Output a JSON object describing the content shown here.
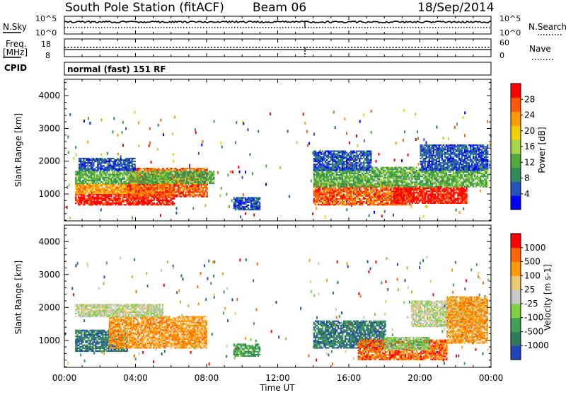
{
  "header": {
    "station": "South Pole Station (fitACF)",
    "beam": "Beam 06",
    "date": "18/Sep/2014"
  },
  "noise_panel": {
    "left_label": "N.Sky",
    "right_label": "N.Search",
    "left_ticks": [
      "10^5",
      "10^0"
    ],
    "right_ticks": [
      "10^5",
      "10^0"
    ]
  },
  "freq_panel": {
    "left_label_line1": "Freq.",
    "left_label_line2": "[MHz]",
    "right_label": "Nave",
    "left_ticks": [
      "18",
      "8"
    ],
    "right_ticks": [
      "60",
      "0"
    ]
  },
  "cpid_panel": {
    "label": "CPID",
    "mode": "normal (fast) 151 RF"
  },
  "x_axis": {
    "label": "Time UT",
    "tick_labels": [
      "00:00",
      "04:00",
      "08:00",
      "12:00",
      "16:00",
      "20:00",
      "00:00"
    ],
    "range_hours": [
      0,
      24
    ]
  },
  "chart_data": [
    {
      "type": "heatmap",
      "title": "",
      "quantity": "Power",
      "colorbar_label": "Power [dB]",
      "colorbar_ticks": [
        "28",
        "24",
        "20",
        "16",
        "12",
        "8",
        "4"
      ],
      "ylabel": "Slant Range [km]",
      "y_ticks": [
        "4000",
        "3000",
        "2000",
        "1000"
      ],
      "ylim": [
        180,
        4500
      ],
      "xlim": [
        0,
        24
      ],
      "colors": [
        "#0000ff",
        "#2255bb",
        "#2f8a5c",
        "#4faa3a",
        "#a8d64a",
        "#f0d000",
        "#ff9a00",
        "#ff5a00",
        "#ff0000"
      ],
      "bands": [
        {
          "t0": 0.6,
          "t1": 6.2,
          "r0": 650,
          "r1": 1000,
          "level": 8
        },
        {
          "t0": 0.6,
          "t1": 6.2,
          "r0": 1000,
          "r1": 1300,
          "level": 6
        },
        {
          "t0": 3.5,
          "t1": 8.0,
          "r0": 900,
          "r1": 1800,
          "level": 7
        },
        {
          "t0": 0.6,
          "t1": 8.4,
          "r0": 1300,
          "r1": 1700,
          "level": 3
        },
        {
          "t0": 0.8,
          "t1": 4.0,
          "r0": 1700,
          "r1": 2100,
          "level": 1
        },
        {
          "t0": 9.5,
          "t1": 11.0,
          "r0": 500,
          "r1": 900,
          "level": 1
        },
        {
          "t0": 14.0,
          "t1": 19.5,
          "r0": 650,
          "r1": 1300,
          "level": 7
        },
        {
          "t0": 18.5,
          "t1": 22.6,
          "r0": 700,
          "r1": 1200,
          "level": 8
        },
        {
          "t0": 14.0,
          "t1": 23.8,
          "r0": 1200,
          "r1": 1800,
          "level": 3
        },
        {
          "t0": 14.0,
          "t1": 17.2,
          "r0": 1700,
          "r1": 2300,
          "level": 1
        },
        {
          "t0": 20.0,
          "t1": 23.8,
          "r0": 1700,
          "r1": 2500,
          "level": 1
        }
      ]
    },
    {
      "type": "heatmap",
      "title": "",
      "quantity": "Velocity",
      "colorbar_label": "Velocity [m s-1]",
      "colorbar_ticks": [
        "1000",
        "500",
        "100",
        "25",
        "-25",
        "-100",
        "-500",
        "-1000"
      ],
      "ylabel": "Slant Range [km]",
      "y_ticks": [
        "4000",
        "3000",
        "2000",
        "1000"
      ],
      "ylim": [
        180,
        4500
      ],
      "xlim": [
        0,
        24
      ],
      "colors": [
        "#2244bb",
        "#2f7a5a",
        "#3fa055",
        "#7ed040",
        "#c8c8c8",
        "#e8c870",
        "#ff9a00",
        "#ff6600",
        "#ff0000"
      ],
      "bands": [
        {
          "t0": 0.6,
          "t1": 3.5,
          "r0": 650,
          "r1": 1300,
          "level": 1
        },
        {
          "t0": 2.5,
          "t1": 8.0,
          "r0": 750,
          "r1": 1700,
          "level": 6
        },
        {
          "t0": 0.6,
          "t1": 5.5,
          "r0": 1700,
          "r1": 2100,
          "level": 4
        },
        {
          "t0": 9.5,
          "t1": 11.0,
          "r0": 500,
          "r1": 900,
          "level": 2
        },
        {
          "t0": 14.0,
          "t1": 18.0,
          "r0": 750,
          "r1": 1600,
          "level": 1
        },
        {
          "t0": 16.5,
          "t1": 21.5,
          "r0": 400,
          "r1": 1000,
          "level": 7
        },
        {
          "t0": 18.0,
          "t1": 20.5,
          "r0": 700,
          "r1": 1100,
          "level": 3
        },
        {
          "t0": 19.5,
          "t1": 23.8,
          "r0": 1400,
          "r1": 2200,
          "level": 4
        },
        {
          "t0": 21.5,
          "t1": 23.8,
          "r0": 900,
          "r1": 2300,
          "level": 6
        }
      ]
    }
  ]
}
